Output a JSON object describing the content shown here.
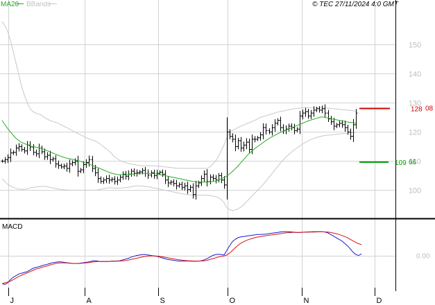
{
  "header": {
    "ma_label": "MA20",
    "bbands_label": "BBands",
    "copyright": "© TEC 27/11/2024 4:0 GMT"
  },
  "colors": {
    "price": "#000000",
    "ma20": "#22aa22",
    "bbands": "#c8c8c8",
    "grid": "#d2d2d2",
    "resistance": "#cc0000",
    "support": "#009900",
    "macd": "#1a1acc",
    "signal": "#dd1111",
    "axis_text": "#bdbdbd"
  },
  "chart_data": [
    {
      "type": "ohlc",
      "title": "",
      "ylim": [
        92,
        162
      ],
      "y_ticks": [
        {
          "value": 100,
          "label": "100"
        },
        {
          "value": 110,
          "label": "110"
        },
        {
          "value": 120,
          "label": "120"
        },
        {
          "value": 130,
          "label": "130"
        },
        {
          "value": 140,
          "label": "140"
        },
        {
          "value": 150,
          "label": "150"
        }
      ],
      "x_month_labels": [
        "J",
        "A",
        "S",
        "O",
        "N",
        "D"
      ],
      "levels": [
        {
          "name": "resistance",
          "value": 128.08,
          "label_main": "128",
          "label_dec": "08"
        },
        {
          "name": "support",
          "value": 109.66,
          "label_main": "109",
          "label_dec": "66"
        }
      ],
      "series": {
        "close": [
          110.0,
          110.5,
          111.2,
          112.8,
          113.0,
          114.5,
          115.0,
          114.0,
          113.5,
          115.5,
          114.8,
          113.0,
          112.5,
          114.5,
          113.2,
          111.5,
          112.0,
          110.5,
          110.8,
          109.0,
          108.5,
          108.0,
          108.3,
          107.5,
          109.0,
          109.5,
          110.0,
          106.5,
          107.0,
          108.8,
          109.5,
          110.5,
          107.5,
          106.0,
          104.0,
          103.0,
          103.5,
          104.0,
          103.5,
          103.8,
          103.0,
          103.5,
          104.5,
          105.5,
          104.8,
          105.5,
          106.5,
          105.8,
          106.0,
          106.3,
          106.8,
          105.8,
          105.2,
          106.0,
          105.0,
          105.8,
          106.2,
          105.5,
          103.5,
          102.5,
          102.8,
          102.3,
          101.5,
          102.0,
          101.0,
          101.5,
          100.2,
          101.0,
          98.5,
          101.5,
          102.5,
          104.0,
          105.5,
          103.0,
          104.5,
          104.0,
          103.5,
          105.0,
          103.5,
          101.8,
          120.0,
          118.5,
          117.5,
          115.0,
          117.0,
          114.5,
          115.5,
          116.5,
          114.0,
          117.5,
          117.5,
          118.0,
          119.0,
          121.5,
          120.5,
          120.0,
          121.5,
          123.0,
          124.0,
          121.5,
          120.5,
          121.0,
          122.0,
          121.5,
          120.5,
          121.0,
          125.5,
          126.5,
          127.0,
          125.5,
          126.5,
          127.5,
          128.0,
          127.5,
          128.0,
          126.5,
          124.5,
          123.5,
          122.0,
          122.5,
          123.0,
          122.5,
          121.5,
          120.0,
          118.5,
          122.5,
          126.5
        ],
        "ma20": [
          124.0,
          122.5,
          121.2,
          120.0,
          118.8,
          117.8,
          117.0,
          116.4,
          116.0,
          115.6,
          115.2,
          115.0,
          114.8,
          114.6,
          114.4,
          114.0,
          113.6,
          113.2,
          112.8,
          112.4,
          112.0,
          111.6,
          111.3,
          111.0,
          110.8,
          110.6,
          110.4,
          110.2,
          109.9,
          109.6,
          109.3,
          109.0,
          108.6,
          108.2,
          107.8,
          107.4,
          107.0,
          106.6,
          106.2,
          105.8,
          105.6,
          105.4,
          105.3,
          105.3,
          105.3,
          105.4,
          105.5,
          105.6,
          105.7,
          105.8,
          105.8,
          105.8,
          105.8,
          105.8,
          105.7,
          105.6,
          105.4,
          105.2,
          105.0,
          104.8,
          104.6,
          104.4,
          104.2,
          104.0,
          103.8,
          103.6,
          103.4,
          103.2,
          103.0,
          102.9,
          102.8,
          102.8,
          102.8,
          102.8,
          102.9,
          103.0,
          103.2,
          103.5,
          103.9,
          104.3,
          104.9,
          105.6,
          106.4,
          107.3,
          108.3,
          109.4,
          110.5,
          111.6,
          112.6,
          113.5,
          114.3,
          115.0,
          115.7,
          116.4,
          117.1,
          117.7,
          118.3,
          118.8,
          119.3,
          119.8,
          120.2,
          120.6,
          121.0,
          121.4,
          121.8,
          122.2,
          122.6,
          123.0,
          123.4,
          123.8,
          124.1,
          124.4,
          124.7,
          125.0,
          125.2,
          125.0,
          124.8,
          124.6,
          124.4,
          124.2,
          124.0,
          123.8,
          123.6,
          123.4,
          123.3,
          123.2,
          123.0
        ],
        "bb_upper": [
          158.0,
          156.5,
          154.5,
          151.5,
          147.5,
          143.5,
          139.5,
          135.5,
          132.5,
          130.0,
          128.0,
          127.0,
          126.5,
          126.2,
          125.8,
          125.0,
          124.5,
          124.0,
          123.6,
          123.3,
          123.0,
          122.5,
          122.0,
          121.5,
          121.0,
          120.5,
          120.0,
          119.5,
          119.0,
          118.5,
          118.0,
          117.6,
          117.3,
          117.0,
          116.5,
          115.8,
          115.0,
          114.3,
          113.5,
          112.6,
          111.5,
          110.8,
          110.2,
          109.8,
          109.5,
          109.2,
          109.0,
          108.8,
          108.6,
          108.5,
          108.4,
          108.4,
          108.4,
          108.4,
          108.4,
          108.3,
          108.2,
          108.1,
          108.0,
          107.9,
          107.8,
          107.7,
          107.6,
          107.5,
          107.5,
          107.5,
          107.5,
          107.5,
          107.5,
          107.5,
          107.5,
          107.5,
          107.5,
          107.5,
          108.0,
          109.0,
          110.0,
          111.5,
          113.5,
          115.5,
          118.0,
          119.5,
          120.5,
          121.0,
          121.5,
          122.0,
          122.4,
          122.8,
          123.2,
          123.6,
          124.0,
          124.5,
          125.0,
          125.3,
          125.6,
          125.9,
          126.2,
          126.5,
          126.8,
          127.0,
          127.2,
          127.4,
          127.6,
          127.8,
          128.0,
          128.1,
          128.2,
          128.3,
          128.4,
          128.4,
          128.4,
          128.4,
          128.4,
          128.4,
          128.4,
          128.3,
          128.2,
          128.1,
          128.0,
          127.9,
          127.8,
          127.7,
          127.6,
          127.5,
          127.4,
          127.3,
          127.2
        ],
        "bb_lower": [
          104.0,
          103.0,
          102.0,
          101.5,
          101.0,
          100.6,
          100.4,
          100.3,
          100.3,
          100.5,
          100.8,
          101.0,
          101.1,
          101.2,
          101.3,
          101.3,
          101.2,
          101.0,
          100.8,
          100.6,
          100.4,
          100.3,
          100.2,
          100.1,
          100.0,
          100.0,
          100.0,
          100.0,
          100.0,
          100.0,
          100.0,
          100.0,
          100.0,
          100.0,
          100.1,
          100.3,
          100.5,
          100.7,
          100.8,
          100.8,
          100.7,
          100.7,
          100.7,
          100.8,
          100.9,
          101.0,
          101.2,
          101.4,
          101.5,
          101.5,
          101.4,
          101.3,
          101.2,
          101.0,
          100.8,
          100.6,
          100.4,
          100.2,
          100.0,
          99.8,
          99.6,
          99.4,
          99.2,
          99.0,
          98.8,
          98.6,
          98.5,
          98.4,
          98.3,
          98.3,
          98.3,
          98.3,
          98.3,
          98.3,
          98.2,
          98.0,
          97.8,
          97.5,
          96.8,
          95.8,
          94.0,
          93.3,
          93.0,
          93.2,
          93.6,
          94.2,
          95.0,
          96.0,
          97.0,
          98.0,
          99.0,
          100.0,
          101.0,
          102.0,
          103.2,
          104.4,
          105.6,
          106.8,
          108.0,
          109.2,
          110.3,
          111.3,
          112.2,
          113.0,
          113.8,
          114.5,
          115.2,
          115.8,
          116.4,
          116.9,
          117.4,
          117.8,
          118.1,
          118.4,
          118.6,
          118.8,
          118.9,
          119.0,
          119.1,
          119.2,
          119.3,
          119.4,
          119.5,
          119.6,
          119.7,
          119.8,
          119.9
        ]
      }
    },
    {
      "type": "line",
      "title": "MACD",
      "ylim": [
        -4,
        4
      ],
      "y_ticks": [
        {
          "value": 0,
          "label": "0.00"
        }
      ],
      "series": [
        {
          "name": "macd",
          "values": [
            -3.5,
            -3.6,
            -3.4,
            -3.0,
            -2.7,
            -2.5,
            -2.3,
            -2.2,
            -2.1,
            -2.0,
            -1.8,
            -1.6,
            -1.5,
            -1.4,
            -1.3,
            -1.2,
            -1.1,
            -1.0,
            -0.9,
            -0.85,
            -0.8,
            -0.8,
            -0.85,
            -0.9,
            -0.95,
            -1.0,
            -1.0,
            -1.0,
            -0.95,
            -0.9,
            -0.85,
            -0.8,
            -0.7,
            -0.65,
            -0.7,
            -0.75,
            -0.75,
            -0.75,
            -0.75,
            -0.7,
            -0.7,
            -0.7,
            -0.65,
            -0.55,
            -0.45,
            -0.35,
            -0.2,
            -0.1,
            0.0,
            0.05,
            0.1,
            0.1,
            0.05,
            0.0,
            -0.05,
            -0.1,
            -0.2,
            -0.3,
            -0.4,
            -0.5,
            -0.55,
            -0.6,
            -0.65,
            -0.7,
            -0.7,
            -0.7,
            -0.7,
            -0.7,
            -0.72,
            -0.72,
            -0.7,
            -0.65,
            -0.55,
            -0.4,
            -0.2,
            0.0,
            0.1,
            0.15,
            0.1,
            0.05,
            0.6,
            1.2,
            1.7,
            2.0,
            2.2,
            2.3,
            2.35,
            2.4,
            2.45,
            2.5,
            2.55,
            2.6,
            2.6,
            2.62,
            2.65,
            2.7,
            2.75,
            2.8,
            2.85,
            2.9,
            2.95,
            2.95,
            2.95,
            2.92,
            2.88,
            2.85,
            2.85,
            2.88,
            2.9,
            2.92,
            2.93,
            2.94,
            2.95,
            2.95,
            2.94,
            2.9,
            2.8,
            2.6,
            2.4,
            2.2,
            2.0,
            1.8,
            1.5,
            1.2,
            0.8,
            0.4,
            0.1,
            0.0,
            0.2
          ]
        },
        {
          "name": "signal",
          "values": [
            -3.5,
            -3.4,
            -3.3,
            -3.2,
            -3.0,
            -2.8,
            -2.6,
            -2.45,
            -2.3,
            -2.15,
            -2.0,
            -1.85,
            -1.7,
            -1.6,
            -1.5,
            -1.4,
            -1.3,
            -1.2,
            -1.1,
            -1.0,
            -0.95,
            -0.92,
            -0.92,
            -0.94,
            -0.96,
            -0.98,
            -0.99,
            -1.0,
            -0.98,
            -0.95,
            -0.92,
            -0.88,
            -0.83,
            -0.78,
            -0.76,
            -0.76,
            -0.75,
            -0.75,
            -0.74,
            -0.73,
            -0.72,
            -0.71,
            -0.7,
            -0.67,
            -0.63,
            -0.57,
            -0.5,
            -0.42,
            -0.34,
            -0.26,
            -0.18,
            -0.12,
            -0.08,
            -0.06,
            -0.06,
            -0.08,
            -0.11,
            -0.16,
            -0.22,
            -0.29,
            -0.36,
            -0.42,
            -0.48,
            -0.54,
            -0.58,
            -0.62,
            -0.65,
            -0.67,
            -0.69,
            -0.7,
            -0.7,
            -0.69,
            -0.66,
            -0.6,
            -0.51,
            -0.4,
            -0.3,
            -0.2,
            -0.12,
            -0.08,
            0.05,
            0.3,
            0.6,
            0.95,
            1.25,
            1.5,
            1.7,
            1.87,
            2.0,
            2.1,
            2.2,
            2.28,
            2.35,
            2.4,
            2.45,
            2.5,
            2.55,
            2.6,
            2.65,
            2.7,
            2.75,
            2.8,
            2.83,
            2.85,
            2.86,
            2.86,
            2.86,
            2.87,
            2.88,
            2.89,
            2.9,
            2.91,
            2.92,
            2.93,
            2.93,
            2.92,
            2.9,
            2.85,
            2.78,
            2.7,
            2.6,
            2.48,
            2.35,
            2.2,
            2.0,
            1.8,
            1.6,
            1.45,
            1.35
          ]
        }
      ]
    }
  ]
}
